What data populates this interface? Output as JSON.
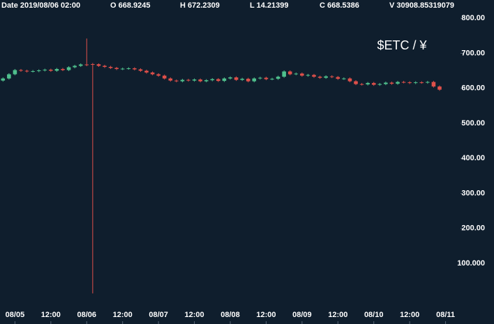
{
  "header": {
    "date": "Date 2019/08/06 02:00",
    "open": "O 668.9245",
    "high": "H 672.2309",
    "low": "L 14.21399",
    "close": "C 668.5386",
    "volume": "V 30908.85319079"
  },
  "chart_data": {
    "type": "candlestick",
    "title": "$ETC / ¥",
    "up_color": "#4fc08d",
    "down_color": "#e0504a",
    "xlim": [
      -5,
      149
    ],
    "xticks": [
      {
        "value": 0,
        "label": "08/05"
      },
      {
        "value": 12,
        "label": "12:00"
      },
      {
        "value": 24,
        "label": "08/06"
      },
      {
        "value": 36,
        "label": "12:00"
      },
      {
        "value": 48,
        "label": "08/07"
      },
      {
        "value": 60,
        "label": "12:00"
      },
      {
        "value": 72,
        "label": "08/08"
      },
      {
        "value": 84,
        "label": "12:00"
      },
      {
        "value": 96,
        "label": "08/09"
      },
      {
        "value": 108,
        "label": "12:00"
      },
      {
        "value": 120,
        "label": "08/10"
      },
      {
        "value": 132,
        "label": "12:00"
      },
      {
        "value": 144,
        "label": "08/11"
      }
    ],
    "ylim": [
      -73,
      852
    ],
    "yticks": [
      {
        "value": 100,
        "label": "100.000"
      },
      {
        "value": 200,
        "label": "200.00"
      },
      {
        "value": 300,
        "label": "300.00"
      },
      {
        "value": 400,
        "label": "400.00"
      },
      {
        "value": 500,
        "label": "500.00"
      },
      {
        "value": 600,
        "label": "600.00"
      },
      {
        "value": 700,
        "label": "700.00"
      },
      {
        "value": 800,
        "label": "800.00"
      }
    ],
    "x": [
      -4,
      -2,
      0,
      2,
      4,
      6,
      8,
      10,
      12,
      14,
      16,
      18,
      20,
      22,
      24,
      26,
      28,
      30,
      32,
      34,
      36,
      38,
      40,
      42,
      44,
      46,
      48,
      50,
      52,
      54,
      56,
      58,
      60,
      62,
      64,
      66,
      68,
      70,
      72,
      74,
      76,
      78,
      80,
      82,
      84,
      86,
      88,
      90,
      92,
      94,
      96,
      98,
      100,
      102,
      104,
      106,
      108,
      110,
      112,
      114,
      116,
      118,
      120,
      122,
      124,
      126,
      128,
      130,
      132,
      134,
      136,
      138,
      140,
      142
    ],
    "open": [
      622,
      628,
      640,
      652,
      650,
      648,
      649,
      651,
      653,
      650,
      655,
      652,
      660,
      664,
      668,
      668.9245,
      668.5386,
      664,
      661,
      658,
      655,
      656,
      657,
      654,
      650,
      645,
      640,
      636,
      628,
      622,
      620,
      624,
      622,
      625,
      620,
      623,
      626,
      621,
      628,
      631,
      624,
      627,
      620,
      628,
      630,
      626,
      627,
      633,
      648,
      640,
      642,
      636,
      638,
      633,
      630,
      634,
      632,
      627,
      628,
      620,
      612,
      611,
      615,
      610,
      612,
      616,
      613,
      618,
      617,
      615,
      617,
      616,
      618,
      605
    ],
    "high": [
      631,
      643,
      655,
      655,
      653,
      652,
      654,
      656,
      656,
      658,
      658,
      663,
      667,
      671,
      742,
      672.2309,
      671,
      667,
      664,
      661,
      659,
      660,
      660,
      657,
      653,
      648,
      643,
      639,
      631,
      625,
      627,
      627,
      628,
      628,
      626,
      629,
      629,
      631,
      634,
      634,
      630,
      630,
      631,
      633,
      633,
      630,
      636,
      651,
      651,
      645,
      645,
      641,
      641,
      636,
      637,
      637,
      635,
      631,
      631,
      623,
      615,
      618,
      618,
      615,
      619,
      619,
      621,
      621,
      620,
      620,
      620,
      621,
      621,
      608
    ],
    "low": [
      619,
      625,
      637,
      647,
      645,
      645,
      646,
      648,
      647,
      647,
      649,
      649,
      657,
      661,
      663,
      14.21399,
      661,
      658,
      655,
      652,
      652,
      653,
      651,
      647,
      642,
      637,
      633,
      625,
      619,
      617,
      617,
      619,
      619,
      617,
      617,
      620,
      618,
      618,
      625,
      621,
      621,
      617,
      617,
      625,
      623,
      623,
      624,
      630,
      637,
      637,
      633,
      633,
      630,
      627,
      627,
      629,
      624,
      624,
      617,
      609,
      608,
      608,
      607,
      607,
      609,
      610,
      610,
      614,
      612,
      612,
      613,
      613,
      602,
      593
    ],
    "close": [
      628,
      640,
      652,
      650,
      648,
      649,
      651,
      653,
      650,
      655,
      652,
      660,
      664,
      668,
      666,
      668.5386,
      664,
      661,
      658,
      655,
      656,
      657,
      654,
      650,
      645,
      640,
      636,
      628,
      622,
      620,
      624,
      622,
      625,
      620,
      623,
      626,
      621,
      628,
      631,
      624,
      627,
      620,
      628,
      630,
      626,
      627,
      633,
      648,
      640,
      642,
      636,
      638,
      633,
      630,
      634,
      632,
      627,
      628,
      620,
      612,
      611,
      615,
      610,
      612,
      616,
      613,
      618,
      617,
      615,
      617,
      616,
      618,
      605,
      596
    ]
  }
}
